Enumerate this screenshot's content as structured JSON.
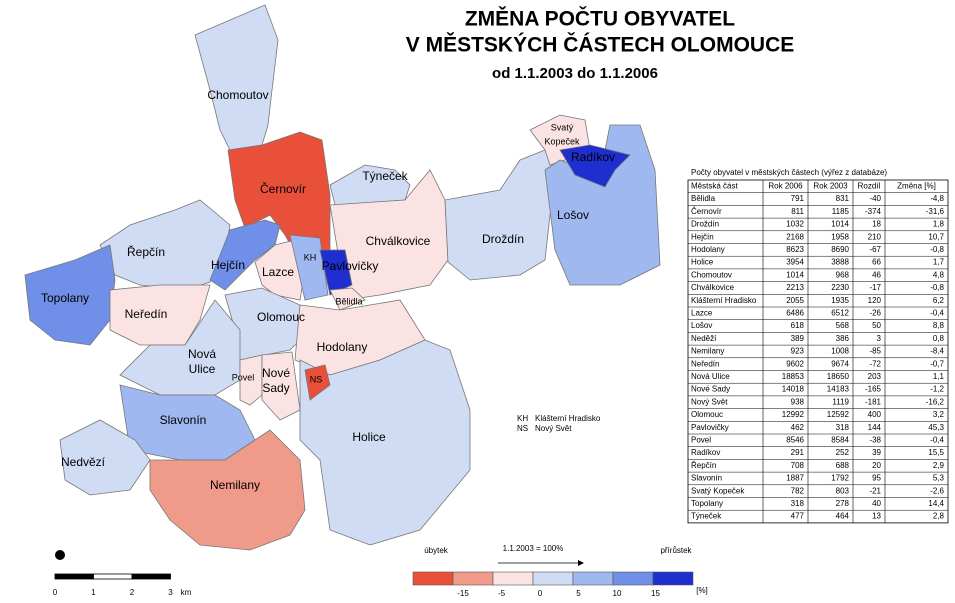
{
  "header": {
    "title_line1": "ZMĚNA POČTU OBYVATEL",
    "title_line2": "V MĚSTSKÝCH ČÁSTECH OLOMOUCE",
    "subtitle": "od 1.1.2003 do 1.1.2006"
  },
  "map": {
    "labels": [
      "Chomoutov",
      "Černovír",
      "Týneček",
      "Svatý",
      "Kopeček",
      "Radíkov",
      "Lošov",
      "Droždín",
      "Chválkovice",
      "Řepčín",
      "Hejčín",
      "Lazce",
      "KH",
      "Pavlovičky",
      "Bělidla",
      "Topolany",
      "Neředín",
      "Olomouc",
      "Hodolany",
      "Nová",
      "Ulice",
      "Povel",
      "Nové",
      "Sady",
      "NS",
      "Slavonín",
      "Holice",
      "Nedvězí",
      "Nemilany"
    ]
  },
  "abbreviations": [
    [
      "KH",
      "Klášterní Hradisko"
    ],
    [
      "NS",
      "Nový Svět"
    ]
  ],
  "table": {
    "title": "Počty obyvatel v městských částech (výřez z databáze)",
    "columns": [
      "Městská část",
      "Rok 2006",
      "Rok 2003",
      "Rozdíl",
      "Změna [%]"
    ],
    "rows": [
      [
        "Bělidla",
        "791",
        "831",
        "-40",
        "-4,8"
      ],
      [
        "Černovír",
        "811",
        "1185",
        "-374",
        "-31,6"
      ],
      [
        "Droždín",
        "1032",
        "1014",
        "18",
        "1,8"
      ],
      [
        "Hejčín",
        "2168",
        "1958",
        "210",
        "10,7"
      ],
      [
        "Hodolany",
        "8623",
        "8690",
        "-67",
        "-0,8"
      ],
      [
        "Holice",
        "3954",
        "3888",
        "66",
        "1,7"
      ],
      [
        "Chomoutov",
        "1014",
        "968",
        "46",
        "4,8"
      ],
      [
        "Chválkovice",
        "2213",
        "2230",
        "-17",
        "-0,8"
      ],
      [
        "Klášterní Hradisko",
        "2055",
        "1935",
        "120",
        "6,2"
      ],
      [
        "Lazce",
        "6486",
        "6512",
        "-26",
        "-0,4"
      ],
      [
        "Lošov",
        "618",
        "568",
        "50",
        "8,8"
      ],
      [
        "Neděží",
        "389",
        "386",
        "3",
        "0,8"
      ],
      [
        "Nemilany",
        "923",
        "1008",
        "-85",
        "-8,4"
      ],
      [
        "Neředín",
        "9602",
        "9674",
        "-72",
        "-0,7"
      ],
      [
        "Nová Ulice",
        "18853",
        "18650",
        "203",
        "1,1"
      ],
      [
        "Nové Sady",
        "14018",
        "14183",
        "-165",
        "-1,2"
      ],
      [
        "Nový Svět",
        "938",
        "1119",
        "-181",
        "-16,2"
      ],
      [
        "Olomouc",
        "12992",
        "12592",
        "400",
        "3,2"
      ],
      [
        "Pavlovičky",
        "462",
        "318",
        "144",
        "45,3"
      ],
      [
        "Povel",
        "8546",
        "8584",
        "-38",
        "-0,4"
      ],
      [
        "Radíkov",
        "291",
        "252",
        "39",
        "15,5"
      ],
      [
        "Řepčín",
        "708",
        "688",
        "20",
        "2,9"
      ],
      [
        "Slavonín",
        "1887",
        "1792",
        "95",
        "5,3"
      ],
      [
        "Svatý Kopeček",
        "782",
        "803",
        "-21",
        "-2,6"
      ],
      [
        "Topolany",
        "318",
        "278",
        "40",
        "14,4"
      ],
      [
        "Týneček",
        "477",
        "464",
        "13",
        "2,8"
      ]
    ]
  },
  "legend": {
    "left": "úbytek",
    "right": "přírůstek",
    "base": "1.1.2003 = 100%",
    "ticks": [
      "-15",
      "-5",
      "0",
      "5",
      "10",
      "15"
    ],
    "unit": "[%]",
    "colors": [
      "#e8503a",
      "#f09a8a",
      "#fbe3e3",
      "#d0dcf4",
      "#a0b8f0",
      "#6f8fe8",
      "#1e2ecf"
    ]
  },
  "scale": {
    "ticks": [
      "0",
      "1",
      "2",
      "3"
    ],
    "unit": "km"
  }
}
